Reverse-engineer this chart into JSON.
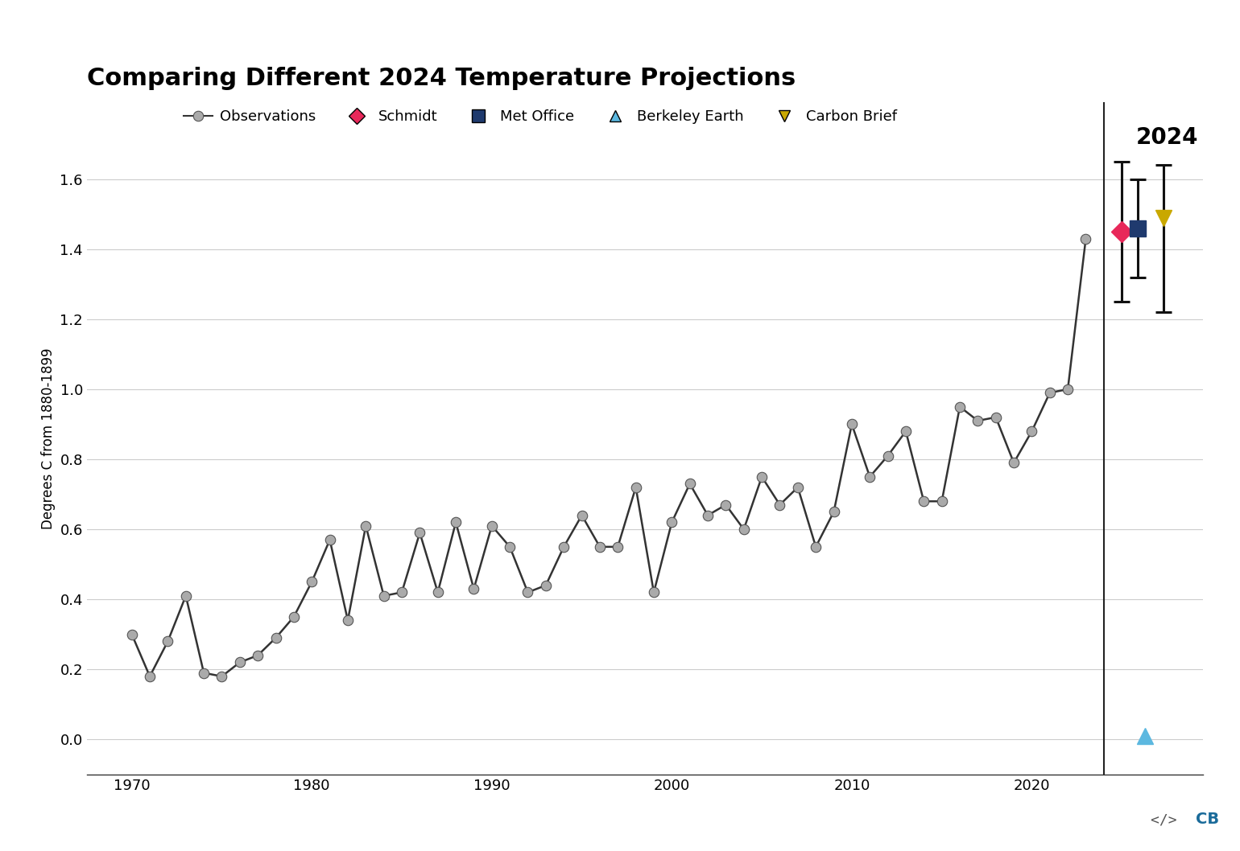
{
  "title": "Comparing Different 2024 Temperature Projections",
  "ylabel": "Degrees C from 1880-1899",
  "background_color": "#ffffff",
  "observations_years": [
    1970,
    1971,
    1972,
    1973,
    1974,
    1975,
    1976,
    1977,
    1978,
    1979,
    1980,
    1981,
    1982,
    1983,
    1984,
    1985,
    1986,
    1987,
    1988,
    1989,
    1990,
    1991,
    1992,
    1993,
    1994,
    1995,
    1996,
    1997,
    1998,
    1999,
    2000,
    2001,
    2002,
    2003,
    2004,
    2005,
    2006,
    2007,
    2008,
    2009,
    2010,
    2011,
    2012,
    2013,
    2014,
    2015,
    2016,
    2017,
    2018,
    2019,
    2020,
    2021,
    2022,
    2023
  ],
  "observations_values": [
    0.3,
    0.18,
    0.28,
    0.41,
    0.19,
    0.18,
    0.22,
    0.24,
    0.29,
    0.35,
    0.45,
    0.57,
    0.34,
    0.61,
    0.41,
    0.42,
    0.59,
    0.42,
    0.62,
    0.43,
    0.61,
    0.55,
    0.42,
    0.44,
    0.55,
    0.64,
    0.55,
    0.55,
    0.72,
    0.42,
    0.62,
    0.73,
    0.64,
    0.67,
    0.6,
    0.75,
    0.67,
    0.72,
    0.55,
    0.65,
    0.9,
    0.75,
    0.81,
    0.88,
    0.68,
    0.68,
    0.95,
    0.91,
    0.92,
    0.79,
    0.88,
    0.99,
    1.0,
    1.43
  ],
  "line_color": "#333333",
  "marker_color": "#aaaaaa",
  "marker_edge_color": "#555555",
  "vline_x": 2024,
  "vline_color": "#222222",
  "schmidt_value": 1.45,
  "schmidt_err_low": 0.2,
  "schmidt_err_high": 0.2,
  "schmidt_color": "#e8285a",
  "met_office_value": 1.46,
  "met_office_err_low": 0.14,
  "met_office_err_high": 0.14,
  "met_office_color": "#1f3a6e",
  "berkeley_earth_value": 0.01,
  "berkeley_earth_color": "#5cb8e0",
  "carbon_brief_value": 1.49,
  "carbon_brief_err_low": 0.27,
  "carbon_brief_err_high": 0.15,
  "carbon_brief_color": "#c9a800",
  "ylim": [
    -0.1,
    1.82
  ],
  "xlim": [
    1967.5,
    2029.5
  ],
  "yticks": [
    0.0,
    0.2,
    0.4,
    0.6,
    0.8,
    1.0,
    1.2,
    1.4,
    1.6
  ],
  "xticks": [
    1970,
    1980,
    1990,
    2000,
    2010,
    2020
  ],
  "title_fontsize": 22,
  "axis_fontsize": 12,
  "tick_fontsize": 13,
  "grid_color": "#cccccc",
  "logo_color_cb": "#1a6b9a",
  "logo_color_bracket": "#555555"
}
